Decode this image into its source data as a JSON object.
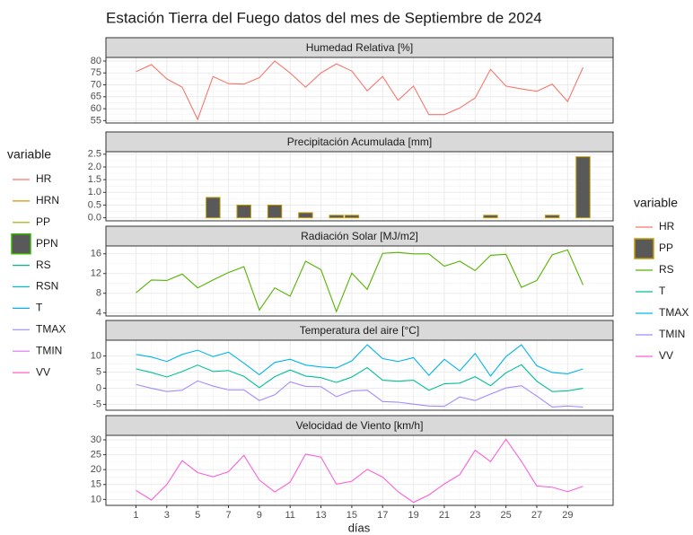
{
  "title": "Estación Tierra del Fuego datos del mes de Septiembre de 2024",
  "x_axis": {
    "label": "días",
    "values": [
      1,
      2,
      3,
      4,
      5,
      6,
      7,
      8,
      9,
      10,
      11,
      12,
      13,
      14,
      15,
      16,
      17,
      18,
      19,
      20,
      21,
      22,
      23,
      24,
      25,
      26,
      27,
      28,
      29,
      30
    ],
    "lim": [
      -0.95,
      31.95
    ],
    "ticks": [
      1,
      3,
      5,
      7,
      9,
      11,
      13,
      15,
      17,
      19,
      21,
      23,
      25,
      27,
      29
    ]
  },
  "legends": [
    {
      "title": "variable",
      "entries": [
        {
          "name": "HR",
          "color": "#F8766D",
          "key": "line"
        },
        {
          "name": "HRN",
          "color": "#D89000",
          "key": "line"
        },
        {
          "name": "PP",
          "color": "#A3A500",
          "key": "line"
        },
        {
          "name": "PPN",
          "color": "#39B600",
          "key": "box",
          "fill": "#595959"
        },
        {
          "name": "RS",
          "color": "#00BF7D",
          "key": "line"
        },
        {
          "name": "RSN",
          "color": "#00BFC4",
          "key": "line"
        },
        {
          "name": "T",
          "color": "#00B0F6",
          "key": "line"
        },
        {
          "name": "TMAX",
          "color": "#9590FF",
          "key": "line"
        },
        {
          "name": "TMIN",
          "color": "#E76BF3",
          "key": "line"
        },
        {
          "name": "VV",
          "color": "#FF62BC",
          "key": "line"
        }
      ]
    },
    {
      "title": "variable",
      "entries": [
        {
          "name": "HR",
          "color": "#F8766D",
          "key": "line"
        },
        {
          "name": "PP",
          "color": "#C49A00",
          "key": "box",
          "fill": "#595959"
        },
        {
          "name": "RS",
          "color": "#53B400",
          "key": "line"
        },
        {
          "name": "T",
          "color": "#00C094",
          "key": "line"
        },
        {
          "name": "TMAX",
          "color": "#00B6EB",
          "key": "line"
        },
        {
          "name": "TMIN",
          "color": "#A58AFF",
          "key": "line"
        },
        {
          "name": "VV",
          "color": "#FB61D7",
          "key": "line"
        }
      ]
    }
  ],
  "chart_data": [
    {
      "type": "line",
      "title": "Humedad Relativa [%]",
      "ylim": [
        54,
        81.5
      ],
      "yticks": [
        55,
        60,
        65,
        70,
        75,
        80
      ],
      "grid": true,
      "series": [
        {
          "name": "HR",
          "color": "#F8766D",
          "values": [
            75.5,
            78.5,
            72.5,
            69,
            55.5,
            73.5,
            70.5,
            70.3,
            73,
            80,
            75,
            69,
            75,
            78.8,
            75.8,
            67.5,
            73.5,
            63.5,
            69.5,
            57.5,
            57.5,
            60.3,
            64.5,
            76.5,
            69.5,
            68.3,
            67.3,
            70.3,
            63,
            77.3
          ]
        }
      ]
    },
    {
      "type": "bar",
      "title": "Precipitación Acumulada [mm]",
      "ylim": [
        -0.12,
        2.6
      ],
      "yticks": [
        {
          "value": 0,
          "label": "0.0"
        },
        0.5,
        {
          "value": 1,
          "label": "1.0"
        },
        1.5,
        {
          "value": 2,
          "label": "2.0"
        },
        2.5
      ],
      "grid": true,
      "series": [
        {
          "name": "PP",
          "color": "#C49A00",
          "fill": "#595959",
          "values": [
            0,
            0,
            0,
            0,
            0,
            0.8,
            0,
            0.5,
            0,
            0.5,
            0,
            0.2,
            0,
            0.1,
            0.1,
            0,
            0,
            0,
            0,
            0,
            0,
            0,
            0,
            0.1,
            0,
            0,
            0,
            0.1,
            0,
            2.4
          ]
        }
      ]
    },
    {
      "type": "line",
      "title": "Radiación Solar [MJ/m2]",
      "ylim": [
        3.4,
        17.6
      ],
      "yticks": [
        4,
        8,
        12,
        16
      ],
      "grid": true,
      "series": [
        {
          "name": "RS",
          "color": "#53B400",
          "values": [
            8.1,
            10.7,
            10.6,
            11.9,
            9.1,
            10.7,
            12.2,
            13.4,
            4.6,
            9.1,
            7.4,
            14.5,
            12.8,
            4.3,
            12.1,
            8.8,
            16.1,
            16.3,
            16,
            16,
            13.5,
            14.5,
            12.6,
            15.7,
            15.9,
            9.2,
            10.6,
            15.8,
            16.8,
            9.7
          ]
        }
      ]
    },
    {
      "type": "line",
      "title": "Temperatura del aire [°C]",
      "ylim": [
        -6.8,
        14.9
      ],
      "yticks": [
        -5,
        0,
        5,
        10
      ],
      "grid": true,
      "series": [
        {
          "name": "T",
          "color": "#00C094",
          "values": [
            6,
            4.9,
            3.5,
            5.2,
            7.2,
            5.2,
            5.5,
            3.7,
            0.2,
            3.6,
            5.7,
            3.8,
            3.3,
            1.8,
            3.5,
            6.4,
            2.5,
            2.2,
            2.5,
            -0.6,
            1.4,
            1.6,
            3.6,
            0.8,
            4.8,
            7.3,
            2.2,
            -1,
            -0.8,
            0
          ]
        },
        {
          "name": "TMAX",
          "color": "#00B6EB",
          "values": [
            10.5,
            9.7,
            8.3,
            10.5,
            11.8,
            9.8,
            11.2,
            7.8,
            4.2,
            8,
            9,
            7.2,
            6.6,
            6.3,
            8.5,
            13.5,
            9.2,
            8.3,
            9.5,
            4,
            9,
            5.4,
            10.8,
            3.8,
            9.8,
            13.5,
            7,
            4.9,
            4.5,
            6
          ]
        },
        {
          "name": "TMIN",
          "color": "#A58AFF",
          "values": [
            1.2,
            0,
            -1,
            -0.6,
            2.3,
            0.7,
            -0.5,
            -0.5,
            -3.8,
            -2,
            2,
            0.6,
            0.5,
            -2.6,
            -0.8,
            -0.6,
            -4.1,
            -4.3,
            -4.9,
            -5.5,
            -5.6,
            -2.7,
            -3.8,
            -1.8,
            0.1,
            0.8,
            -2.4,
            -5.8,
            -5.5,
            -5.8
          ]
        }
      ]
    },
    {
      "type": "line",
      "title": "Velocidad de Viento [km/h]",
      "ylim": [
        8,
        31.5
      ],
      "yticks": [
        10,
        15,
        20,
        25,
        30
      ],
      "grid": true,
      "series": [
        {
          "name": "VV",
          "color": "#FB61D7",
          "values": [
            13,
            9.8,
            15,
            23,
            19,
            17.6,
            19.3,
            24.8,
            16.5,
            12.5,
            15.8,
            25.2,
            24.2,
            15.1,
            16.1,
            20.1,
            17.5,
            12.6,
            9,
            11.5,
            15.2,
            18.3,
            26.5,
            22.7,
            30.2,
            22.8,
            14.5,
            14.1,
            12.6,
            14.4
          ]
        }
      ]
    }
  ]
}
